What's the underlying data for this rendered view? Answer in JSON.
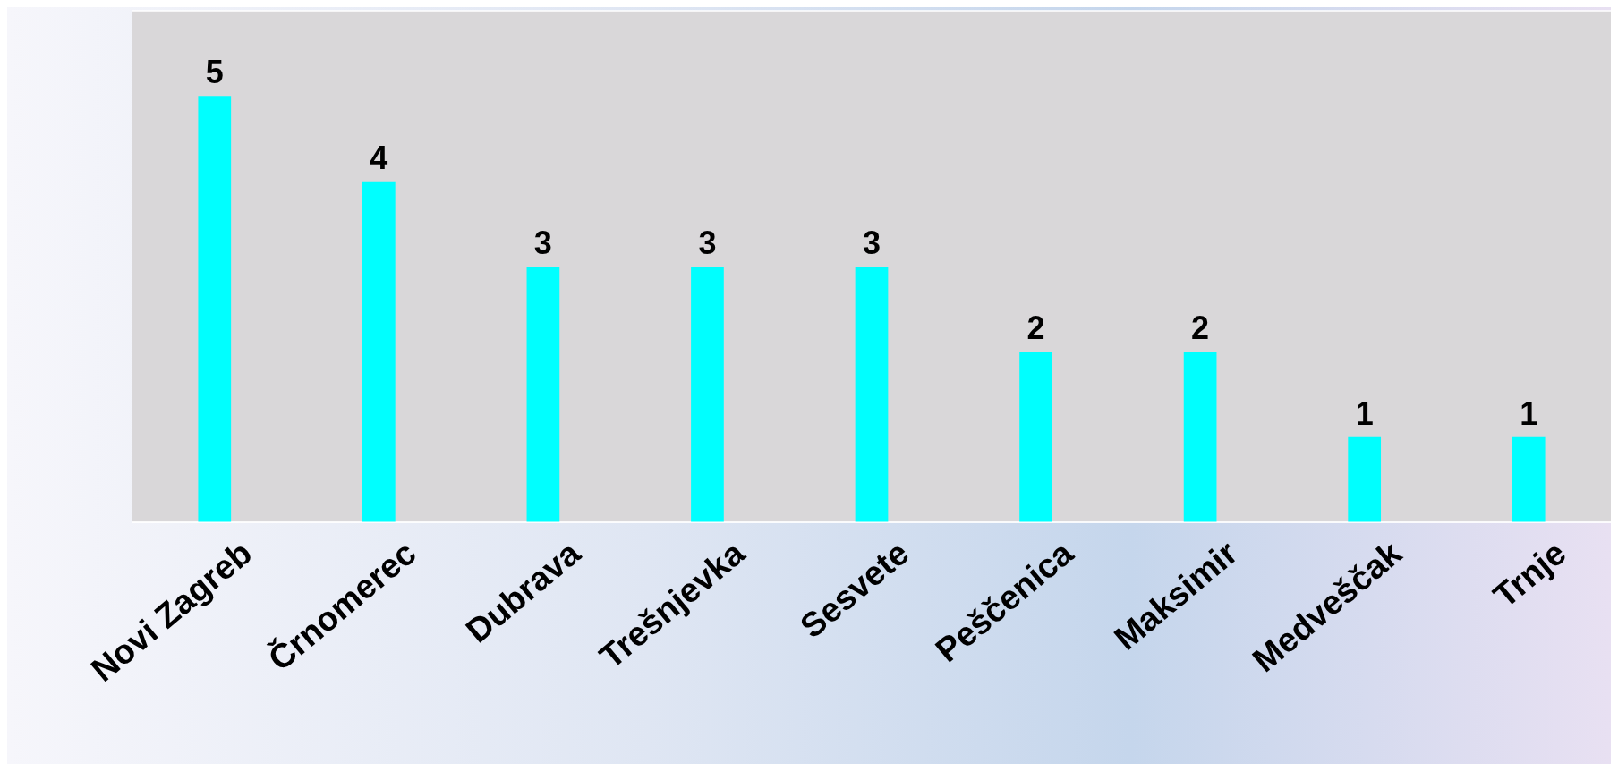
{
  "chart_data": {
    "type": "bar",
    "categories": [
      "Novi Zagreb",
      "Črnomerec",
      "Dubrava",
      "Trešnjevka",
      "Sesvete",
      "Peščenica",
      "Maksimir",
      "Medveščak",
      "Trnje"
    ],
    "values": [
      5,
      4,
      3,
      3,
      3,
      2,
      2,
      1,
      1
    ],
    "color": "#00ffff",
    "data_labels": true,
    "ylim": [
      0,
      6
    ],
    "grid": "y",
    "tick_labels": "x"
  }
}
